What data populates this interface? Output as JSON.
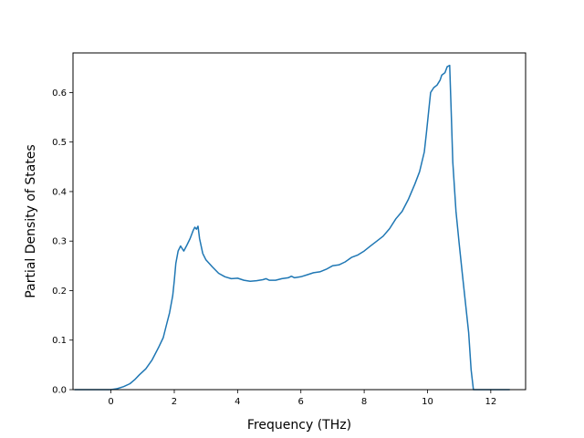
{
  "chart_data": {
    "type": "line",
    "title": "",
    "xlabel": "Frequency (THz)",
    "ylabel": "Partial Density of States",
    "xlim": [
      -1.2,
      13.1
    ],
    "ylim": [
      0.0,
      0.68
    ],
    "xticks": [
      0,
      2,
      4,
      6,
      8,
      10,
      12
    ],
    "yticks": [
      0.0,
      0.1,
      0.2,
      0.3,
      0.4,
      0.5,
      0.6
    ],
    "xtick_labels": [
      "0",
      "2",
      "4",
      "6",
      "8",
      "10",
      "12"
    ],
    "ytick_labels": [
      "0.0",
      "0.1",
      "0.2",
      "0.3",
      "0.4",
      "0.5",
      "0.6"
    ],
    "grid": false,
    "legend": "none",
    "color": "#1f77b4",
    "series": [
      {
        "x": [
          -1.15,
          -0.5,
          0.0,
          0.2,
          0.4,
          0.6,
          0.75,
          0.9,
          1.1,
          1.3,
          1.5,
          1.65,
          1.75,
          1.85,
          1.95,
          2.0,
          2.05,
          2.12,
          2.2,
          2.3,
          2.4,
          2.5,
          2.6,
          2.65,
          2.7,
          2.75,
          2.8,
          2.9,
          3.0,
          3.2,
          3.4,
          3.6,
          3.8,
          4.0,
          4.2,
          4.4,
          4.6,
          4.8,
          4.9,
          5.0,
          5.2,
          5.4,
          5.6,
          5.7,
          5.8,
          6.0,
          6.2,
          6.4,
          6.6,
          6.8,
          7.0,
          7.2,
          7.4,
          7.6,
          7.8,
          8.0,
          8.2,
          8.4,
          8.6,
          8.8,
          9.0,
          9.2,
          9.4,
          9.6,
          9.75,
          9.9,
          9.97,
          10.05,
          10.1,
          10.2,
          10.3,
          10.4,
          10.45,
          10.55,
          10.62,
          10.7,
          10.75,
          10.8,
          10.9,
          11.0,
          11.1,
          11.2,
          11.3,
          11.38,
          11.45,
          11.5,
          11.6,
          12.0,
          12.6
        ],
        "y": [
          0.0,
          0.0,
          0.0,
          0.002,
          0.006,
          0.012,
          0.02,
          0.03,
          0.042,
          0.06,
          0.085,
          0.105,
          0.13,
          0.155,
          0.19,
          0.22,
          0.255,
          0.28,
          0.29,
          0.28,
          0.292,
          0.305,
          0.322,
          0.328,
          0.324,
          0.33,
          0.305,
          0.275,
          0.262,
          0.248,
          0.235,
          0.228,
          0.224,
          0.225,
          0.221,
          0.219,
          0.22,
          0.222,
          0.224,
          0.221,
          0.221,
          0.224,
          0.226,
          0.229,
          0.226,
          0.228,
          0.232,
          0.236,
          0.238,
          0.243,
          0.25,
          0.252,
          0.258,
          0.267,
          0.272,
          0.28,
          0.29,
          0.3,
          0.31,
          0.325,
          0.345,
          0.36,
          0.385,
          0.415,
          0.44,
          0.48,
          0.52,
          0.57,
          0.6,
          0.61,
          0.615,
          0.625,
          0.635,
          0.64,
          0.652,
          0.655,
          0.56,
          0.46,
          0.36,
          0.295,
          0.235,
          0.175,
          0.115,
          0.04,
          0.0,
          0.0,
          0.0,
          0.0,
          0.0
        ]
      }
    ]
  }
}
